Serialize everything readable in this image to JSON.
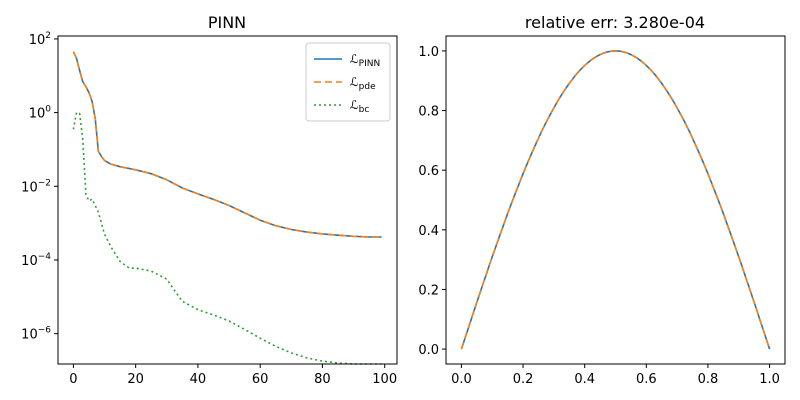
{
  "chart_data": [
    {
      "type": "line",
      "title": "PINN",
      "xlabel": "",
      "ylabel": "",
      "yscale": "log",
      "xlim": [
        -4.95,
        103.95
      ],
      "ylim": [
        1.5e-07,
        120.0
      ],
      "xticks": [
        0,
        20,
        40,
        60,
        80,
        100
      ],
      "yticks": [
        {
          "base": "10",
          "exp": "−6",
          "value": 1e-06
        },
        {
          "base": "10",
          "exp": "−4",
          "value": 0.0001
        },
        {
          "base": "10",
          "exp": "−2",
          "value": 0.01
        },
        {
          "base": "10",
          "exp": "0",
          "value": 1
        },
        {
          "base": "10",
          "exp": "2",
          "value": 100
        }
      ],
      "legend": {
        "position": "top-right"
      },
      "series": [
        {
          "name": "PINN",
          "label_main": "ℒ",
          "label_sub": "PINN",
          "color": "#1f77b4",
          "style": "solid",
          "x": [
            0,
            1,
            2,
            3,
            4,
            5,
            6,
            7,
            8,
            9,
            10,
            12,
            15,
            20,
            25,
            30,
            35,
            40,
            45,
            50,
            55,
            60,
            65,
            70,
            75,
            80,
            85,
            90,
            95,
            99
          ],
          "y": [
            45,
            30,
            14,
            7,
            5,
            3.5,
            2,
            0.7,
            0.09,
            0.065,
            0.05,
            0.04,
            0.034,
            0.028,
            0.022,
            0.015,
            0.009,
            0.0062,
            0.0044,
            0.003,
            0.0019,
            0.0012,
            0.00085,
            0.00067,
            0.00057,
            0.00051,
            0.00047,
            0.00044,
            0.00042,
            0.00042
          ]
        },
        {
          "name": "pde",
          "label_main": "ℒ",
          "label_sub": "pde",
          "color": "#ff7f0e",
          "style": "dashed",
          "x": [
            0,
            1,
            2,
            3,
            4,
            5,
            6,
            7,
            8,
            9,
            10,
            12,
            15,
            20,
            25,
            30,
            35,
            40,
            45,
            50,
            55,
            60,
            65,
            70,
            75,
            80,
            85,
            90,
            95,
            99
          ],
          "y": [
            45,
            30,
            14,
            7,
            5,
            3.5,
            2,
            0.7,
            0.09,
            0.065,
            0.05,
            0.04,
            0.034,
            0.028,
            0.022,
            0.015,
            0.009,
            0.0062,
            0.0044,
            0.003,
            0.0019,
            0.0012,
            0.00085,
            0.00067,
            0.00057,
            0.00051,
            0.00047,
            0.00044,
            0.00042,
            0.00042
          ]
        },
        {
          "name": "bc",
          "label_main": "ℒ",
          "label_sub": "bc",
          "color": "#2ca02c",
          "style": "dotted",
          "x": [
            0,
            1,
            2,
            3,
            4,
            5,
            6,
            7,
            8,
            9,
            10,
            12,
            15,
            18,
            20,
            25,
            30,
            32,
            35,
            40,
            45,
            50,
            55,
            60,
            65,
            70,
            75,
            80,
            85,
            90,
            95,
            99
          ],
          "y": [
            0.35,
            1.0,
            0.95,
            0.2,
            0.006,
            0.004,
            0.0045,
            0.003,
            0.002,
            0.001,
            0.0005,
            0.00023,
            9e-05,
            6e-05,
            6e-05,
            5e-05,
            3e-05,
            1.7e-05,
            7.5e-06,
            4.5e-06,
            3.2e-06,
            2.2e-06,
            1.3e-06,
            7.5e-07,
            4.5e-07,
            3e-07,
            2.2e-07,
            1.8e-07,
            1.6e-07,
            1.5e-07,
            1.5e-07,
            1.5e-07
          ]
        }
      ]
    },
    {
      "type": "line",
      "title": "relative err: 3.280e-04",
      "xlabel": "",
      "ylabel": "",
      "xlim": [
        -0.05,
        1.05
      ],
      "ylim": [
        -0.05,
        1.05
      ],
      "xticks": [
        "0.0",
        "0.2",
        "0.4",
        "0.6",
        "0.8",
        "1.0"
      ],
      "yticks": [
        "0.0",
        "0.2",
        "0.4",
        "0.6",
        "0.8",
        "1.0"
      ],
      "series": [
        {
          "color": "#1f77b4",
          "style": "solid",
          "function": "sin(pi*x)",
          "x_range": [
            0,
            1
          ]
        },
        {
          "color": "#ff7f0e",
          "style": "dashed",
          "function": "sin(pi*x)",
          "x_range": [
            0,
            1
          ]
        }
      ]
    }
  ]
}
